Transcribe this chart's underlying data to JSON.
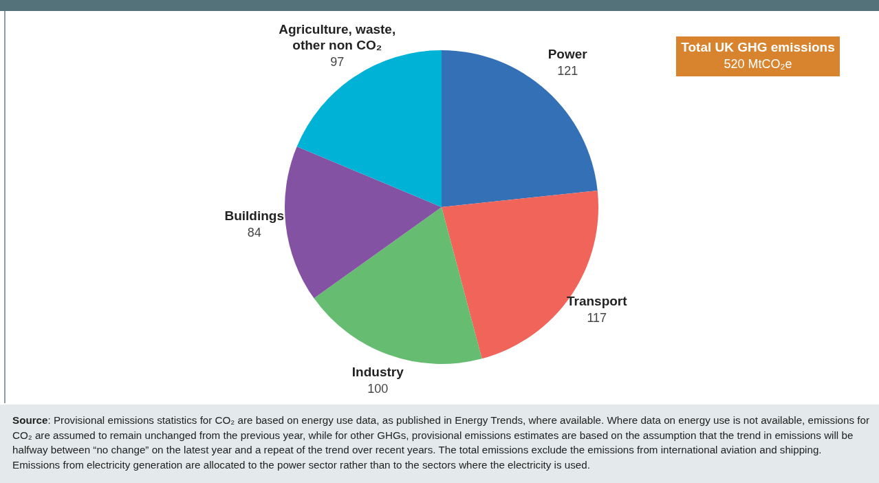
{
  "chart_data": {
    "type": "pie",
    "categories": [
      "Power",
      "Transport",
      "Industry",
      "Buildings",
      "Agriculture, waste, other non CO₂"
    ],
    "values": [
      121,
      117,
      100,
      84,
      97
    ],
    "colors": [
      "#3470b6",
      "#f0645a",
      "#66bd72",
      "#8452a2",
      "#00b2d6"
    ],
    "data_labels": true,
    "legend": false,
    "annotations": [
      "Total UK GHG emissions",
      "520 MtCO₂e",
      "Source: Provisional emissions statistics for CO₂ are based on energy use data, as published in Energy Trends, where available. Where data on energy use is not available, emissions for CO₂ are assumed to remain unchanged from the previous year, while for other GHGs, provisional emissions estimates are based on the assumption that the trend in emissions will be halfway between “no change” on the latest year and a repeat of the trend over recent years. The total emissions exclude the emissions from international aviation and shipping. Emissions from electricity generation are allocated to the power sector rather than to the sectors where the electricity is used."
    ]
  }
}
